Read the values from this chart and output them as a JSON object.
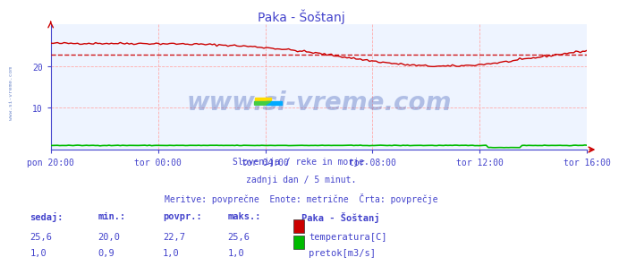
{
  "title": "Paka - Šoštanj",
  "bg_color": "#ffffff",
  "plot_bg_color": "#eef4ff",
  "grid_color": "#ffaaaa",
  "grid_color_v": "#ffaaaa",
  "title_color": "#4444cc",
  "axis_label_color": "#4444cc",
  "text_color": "#4444cc",
  "xlim": [
    0,
    20
  ],
  "ylim": [
    0,
    30
  ],
  "yticks": [
    10,
    20
  ],
  "xtick_labels": [
    "pon 20:00",
    "tor 00:00",
    "tor 04:00",
    "tor 08:00",
    "tor 12:00",
    "tor 16:00"
  ],
  "xtick_positions": [
    0,
    4,
    8,
    12,
    16,
    20
  ],
  "avg_temp": 22.7,
  "temp_color": "#cc0000",
  "flow_color": "#00bb00",
  "avg_line_color": "#cc0000",
  "watermark_text": "www.si-vreme.com",
  "watermark_color": "#2244aa",
  "watermark_alpha": 0.3,
  "watermark_fontsize": 22,
  "subtitle1": "Slovenija / reke in morje.",
  "subtitle2": "zadnji dan / 5 minut.",
  "subtitle3": "Meritve: povprečne  Enote: metrične  Črta: povprečje",
  "legend_title": "Paka - Šoštanj",
  "legend_items": [
    {
      "label": "temperatura[C]",
      "color": "#cc0000"
    },
    {
      "label": "pretok[m3/s]",
      "color": "#00bb00"
    }
  ],
  "table_headers": [
    "sedaj:",
    "min.:",
    "povpr.:",
    "maks.:"
  ],
  "table_temp": [
    25.6,
    20.0,
    22.7,
    25.6
  ],
  "table_flow": [
    1.0,
    0.9,
    1.0,
    1.0
  ],
  "left_label": "www.si-vreme.com",
  "left_label_color": "#4466bb",
  "spine_color": "#4444cc",
  "n_points": 240
}
